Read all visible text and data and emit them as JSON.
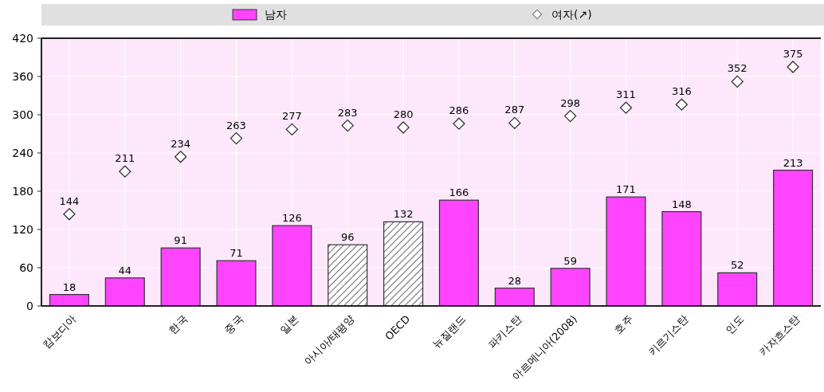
{
  "chart_data": {
    "type": "bar",
    "categories": [
      "캄보디아",
      null,
      "한국",
      "중국",
      "일본",
      "아시아/태평양",
      "OECD",
      "뉴질랜드",
      "파키스탄",
      "아르메니아(2008)",
      "호주",
      "키르기스탄",
      "인도",
      "카자흐스탄"
    ],
    "series": [
      {
        "name": "남자",
        "color": "#ff44ff",
        "colors": [
          "#ff44ff",
          "#ff44ff",
          "#ff44ff",
          "#ff44ff",
          "#ff44ff",
          "#333333",
          "#333333",
          "#ff44ff",
          "#ff44ff",
          "#ff44ff",
          "#ff44ff",
          "#ff44ff",
          "#ff44ff",
          "#ff44ff"
        ],
        "values": [
          18,
          44,
          91,
          71,
          126,
          96,
          132,
          166,
          28,
          59,
          171,
          148,
          52,
          213
        ]
      },
      {
        "name": "여자(↗)",
        "type": "scatter",
        "color": "#ffffff",
        "values": [
          144,
          211,
          234,
          263,
          277,
          283,
          280,
          286,
          287,
          298,
          311,
          316,
          352,
          375
        ]
      }
    ],
    "ylim": [
      0,
      420
    ],
    "yticks": [
      0,
      60,
      120,
      180,
      240,
      300,
      360,
      420
    ],
    "grid": true,
    "legend": "top",
    "marker": "diamond",
    "data_labels": true
  }
}
